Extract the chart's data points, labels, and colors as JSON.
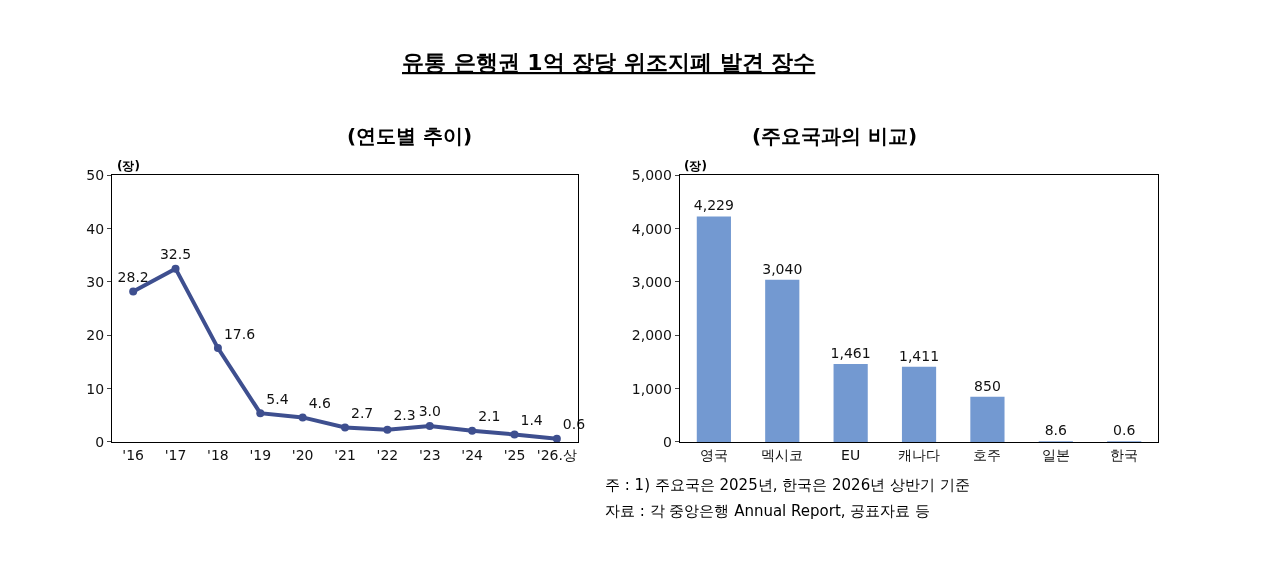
{
  "chart_data": [
    {
      "type": "line",
      "title": "유통 은행권 1억 장당 위조지폐 발견 장수",
      "subtitle": "(연도별 추이)",
      "ylabel": "(장)",
      "categories": [
        "'16",
        "'17",
        "'18",
        "'19",
        "'20",
        "'21",
        "'22",
        "'23",
        "'24",
        "'25",
        "'26.상"
      ],
      "series": [
        {
          "color": "#3e4f8f",
          "values": [
            28.2,
            32.5,
            17.6,
            5.4,
            4.6,
            2.7,
            2.3,
            3.0,
            2.1,
            1.4,
            0.6
          ]
        }
      ],
      "value_labels": [
        "28.2",
        "32.5",
        "17.6",
        "5.4",
        "4.6",
        "2.7",
        "2.3",
        "3.0",
        "2.1",
        "1.4",
        "0.6"
      ],
      "ylim": [
        0,
        50
      ],
      "yticks": [
        0,
        10,
        20,
        30,
        40,
        50
      ],
      "marker": "circle",
      "line_style": "solid"
    },
    {
      "type": "bar",
      "subtitle": "(주요국과의 비교)",
      "ylabel": "(장)",
      "categories": [
        "영국",
        "멕시코",
        "EU",
        "캐나다",
        "호주",
        "일본",
        "한국"
      ],
      "series": [
        {
          "color": "#7399d1",
          "values": [
            4229,
            3040,
            1461,
            1411,
            850,
            8.6,
            0.6
          ]
        }
      ],
      "value_labels": [
        "4,229",
        "3,040",
        "1,461",
        "1,411",
        "850",
        "8.6",
        "0.6"
      ],
      "ylim": [
        0,
        5000
      ],
      "yticks": [
        0,
        {
          "value": 1000,
          "label": "1,000"
        },
        {
          "value": 2000,
          "label": "2,000"
        },
        {
          "value": 3000,
          "label": "3,000"
        },
        {
          "value": 4000,
          "label": "4,000"
        },
        {
          "value": 5000,
          "label": "5,000"
        }
      ],
      "annotations": [
        "주 : 1) 주요국은 2025년, 한국은 2026년 상반기 기준",
        "자료 : 각 중앙은행 Annual Report, 공표자료 등"
      ]
    }
  ]
}
